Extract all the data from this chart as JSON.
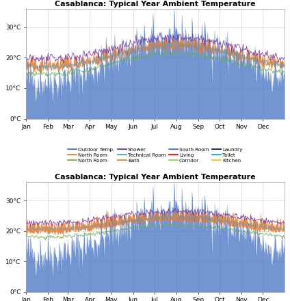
{
  "title": "Casablanca: Typical Year Ambient Temperature",
  "yticks": [
    0,
    10,
    20,
    30
  ],
  "ytick_labels": [
    "0°C",
    "10°C",
    "20°C",
    "30°C"
  ],
  "months": [
    "Jan",
    "Feb",
    "Mar",
    "Apr",
    "May",
    "Jun",
    "Jul",
    "Aug",
    "Sep",
    "Oct",
    "Nov",
    "Dec"
  ],
  "month_positions": [
    0,
    31,
    59,
    90,
    120,
    151,
    181,
    212,
    243,
    273,
    304,
    334
  ],
  "legend_entries": [
    {
      "label": "Outdoor Temp.",
      "color": "#4472C4"
    },
    {
      "label": "North Room",
      "color": "#ED7D31"
    },
    {
      "label": "North Room",
      "color": "#70AD47"
    },
    {
      "label": "Shower",
      "color": "#7030A0"
    },
    {
      "label": "Technical Room",
      "color": "#4BACC6"
    },
    {
      "label": "Bath",
      "color": "#ED7D31"
    },
    {
      "label": "South Room",
      "color": "#4472C4"
    },
    {
      "label": "Living",
      "color": "#FF0000"
    },
    {
      "label": "Corridor",
      "color": "#92D050"
    },
    {
      "label": "Laundry",
      "color": "#002060"
    },
    {
      "label": "Toilet",
      "color": "#00B0F0"
    },
    {
      "label": "Kitchen",
      "color": "#FFC000"
    }
  ],
  "outdoor_fill_color": "#4472C4",
  "orange_fill_color": "#ED7D31",
  "green_line_color": "#70AD47",
  "purple_line_color": "#7030A0",
  "teal_line_color": "#4BACC6",
  "ylim": [
    0,
    35
  ],
  "n_days": 365,
  "seed": 42
}
